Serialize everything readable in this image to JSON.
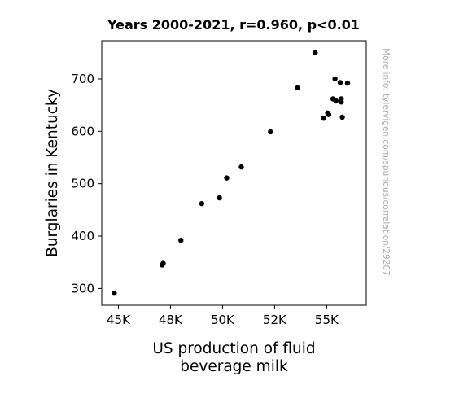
{
  "chart_data": {
    "type": "scatter",
    "title": "Years 2000-2021, r=0.960, p<0.01",
    "xlabel_lines": [
      "US production of fluid",
      "beverage milk"
    ],
    "ylabel": "Burglaries in Kentucky",
    "side_note": "More info: tylervigen.com/spurious/correlation/29207",
    "xlim": [
      44200,
      56900
    ],
    "ylim": [
      268,
      773
    ],
    "xticks": [
      45000,
      47500,
      50000,
      52500,
      55000
    ],
    "xtick_labels": [
      "45K",
      "48K",
      "50K",
      "52K",
      "55K"
    ],
    "yticks": [
      300,
      400,
      500,
      600,
      700
    ],
    "ytick_labels": [
      "300",
      "400",
      "500",
      "600",
      "700"
    ],
    "grid": false,
    "point_color": "#000000",
    "points": [
      {
        "x": 44800,
        "y": 291
      },
      {
        "x": 47100,
        "y": 345
      },
      {
        "x": 47150,
        "y": 348
      },
      {
        "x": 48000,
        "y": 392
      },
      {
        "x": 49000,
        "y": 462
      },
      {
        "x": 49850,
        "y": 473
      },
      {
        "x": 50200,
        "y": 511
      },
      {
        "x": 50900,
        "y": 532
      },
      {
        "x": 52300,
        "y": 599
      },
      {
        "x": 53600,
        "y": 683
      },
      {
        "x": 54450,
        "y": 750
      },
      {
        "x": 54850,
        "y": 625
      },
      {
        "x": 55050,
        "y": 635
      },
      {
        "x": 55100,
        "y": 632
      },
      {
        "x": 55300,
        "y": 662
      },
      {
        "x": 55400,
        "y": 700
      },
      {
        "x": 55450,
        "y": 658
      },
      {
        "x": 55700,
        "y": 662
      },
      {
        "x": 55650,
        "y": 693
      },
      {
        "x": 55700,
        "y": 656
      },
      {
        "x": 55750,
        "y": 627
      },
      {
        "x": 56000,
        "y": 692
      }
    ]
  }
}
